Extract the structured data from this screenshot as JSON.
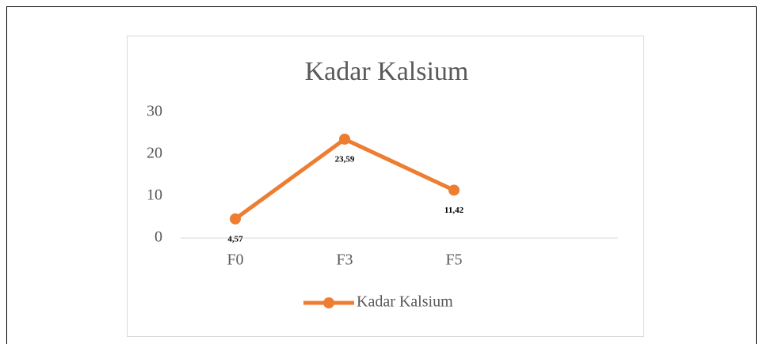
{
  "chart_data": {
    "type": "line",
    "title": "Kadar Kalsium",
    "categories": [
      "F0",
      "F3",
      "F5",
      null
    ],
    "series": [
      {
        "name": "Kadar Kalsium",
        "color": "#ed7d31",
        "values": [
          4.57,
          23.59,
          11.42,
          null
        ],
        "value_labels": [
          "4,57",
          "23,59",
          "11,42",
          null
        ]
      }
    ],
    "ylim": [
      0,
      30
    ],
    "yticks": [
      0,
      10,
      20,
      30
    ],
    "grid": false,
    "legend": "bottom"
  }
}
